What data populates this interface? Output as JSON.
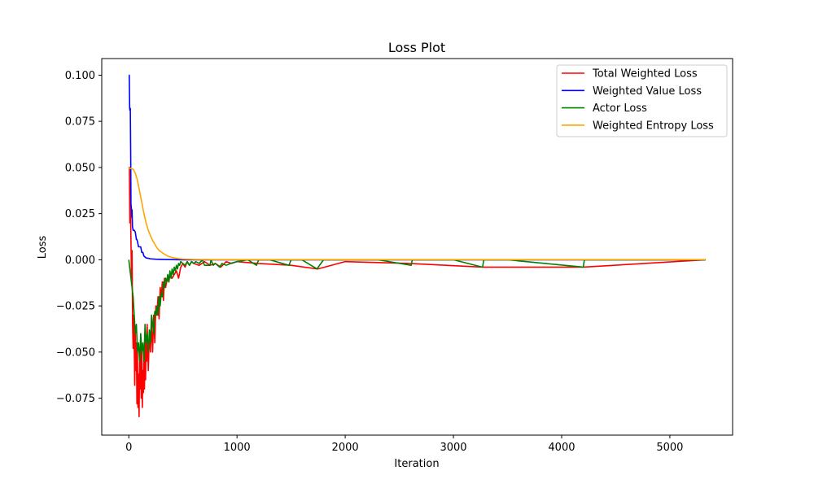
{
  "chart_data": {
    "type": "line",
    "title": "Loss Plot",
    "xlabel": "Iteration",
    "ylabel": "Loss",
    "xlim": [
      -250,
      5580
    ],
    "ylim": [
      -0.095,
      0.109
    ],
    "xticks": [
      0,
      1000,
      2000,
      3000,
      4000,
      5000
    ],
    "xtick_labels": [
      "0",
      "1000",
      "2000",
      "3000",
      "4000",
      "5000"
    ],
    "yticks": [
      -0.075,
      -0.05,
      -0.025,
      0.0,
      0.025,
      0.05,
      0.075,
      0.1
    ],
    "ytick_labels": [
      "−0.075",
      "−0.050",
      "−0.025",
      "0.000",
      "0.025",
      "0.050",
      "0.075",
      "0.100"
    ],
    "grid": false,
    "legend_position": "top-right",
    "series": [
      {
        "name": "Total Weighted Loss",
        "color": "#ff0000",
        "x": [
          0,
          5,
          10,
          15,
          20,
          25,
          30,
          35,
          40,
          45,
          50,
          55,
          60,
          65,
          70,
          75,
          80,
          85,
          90,
          95,
          100,
          105,
          110,
          115,
          120,
          125,
          130,
          135,
          140,
          145,
          150,
          155,
          160,
          165,
          170,
          180,
          190,
          200,
          210,
          220,
          230,
          240,
          250,
          260,
          270,
          280,
          290,
          300,
          310,
          320,
          330,
          340,
          350,
          360,
          370,
          380,
          400,
          420,
          440,
          460,
          480,
          500,
          520,
          540,
          560,
          580,
          600,
          650,
          700,
          750,
          800,
          850,
          900,
          950,
          1000,
          1200,
          1500,
          1745,
          2000,
          2600,
          3270,
          4200,
          5330
        ],
        "y": [
          0.05,
          0.05,
          0.02,
          0.03,
          0.01,
          -0.01,
          0.005,
          -0.035,
          -0.048,
          -0.03,
          -0.045,
          -0.068,
          -0.04,
          -0.06,
          -0.045,
          -0.078,
          -0.05,
          -0.08,
          -0.062,
          -0.085,
          -0.055,
          -0.07,
          -0.045,
          -0.075,
          -0.05,
          -0.08,
          -0.06,
          -0.072,
          -0.048,
          -0.07,
          -0.04,
          -0.065,
          -0.045,
          -0.055,
          -0.035,
          -0.06,
          -0.04,
          -0.05,
          -0.035,
          -0.05,
          -0.03,
          -0.045,
          -0.025,
          -0.03,
          -0.02,
          -0.032,
          -0.015,
          -0.02,
          -0.012,
          -0.022,
          -0.01,
          -0.015,
          -0.012,
          -0.01,
          -0.012,
          -0.008,
          -0.01,
          -0.008,
          -0.006,
          -0.01,
          -0.004,
          -0.002,
          -0.004,
          -0.001,
          -0.003,
          -0.001,
          -0.002,
          -0.003,
          -0.001,
          -0.003,
          -0.002,
          -0.004,
          -0.001,
          -0.002,
          -0.001,
          -0.002,
          -0.003,
          -0.005,
          -0.001,
          -0.002,
          -0.004,
          -0.004,
          0.0
        ]
      },
      {
        "name": "Weighted Value Loss",
        "color": "#0000ff",
        "x": [
          0,
          4,
          8,
          10,
          14,
          18,
          20,
          24,
          28,
          30,
          34,
          40,
          50,
          60,
          70,
          75,
          80,
          90,
          100,
          110,
          120,
          130,
          140,
          160,
          180,
          200,
          250,
          300,
          400,
          500,
          1000,
          2000,
          3000,
          4000,
          5330
        ],
        "y": [
          0.1,
          0.1,
          0.082,
          0.081,
          0.082,
          0.052,
          0.03,
          0.028,
          0.023,
          0.027,
          0.018,
          0.016,
          0.016,
          0.015,
          0.011,
          0.011,
          0.01,
          0.007,
          0.007,
          0.007,
          0.004,
          0.004,
          0.002,
          0.001,
          0.0008,
          0.0005,
          0.0003,
          0.0002,
          0.0001,
          0.0,
          0.0,
          0.0,
          0.0,
          0.0,
          0.0
        ]
      },
      {
        "name": "Actor Loss",
        "color": "#008000",
        "x": [
          0,
          10,
          20,
          30,
          40,
          50,
          60,
          70,
          80,
          90,
          100,
          110,
          120,
          130,
          140,
          150,
          160,
          170,
          180,
          190,
          200,
          210,
          220,
          230,
          240,
          250,
          260,
          270,
          280,
          290,
          300,
          310,
          320,
          330,
          340,
          350,
          360,
          370,
          380,
          390,
          400,
          410,
          420,
          430,
          440,
          450,
          460,
          470,
          480,
          500,
          520,
          540,
          560,
          580,
          600,
          620,
          650,
          680,
          700,
          750,
          760,
          780,
          800,
          820,
          840,
          860,
          900,
          940,
          1000,
          1100,
          1180,
          1200,
          1300,
          1480,
          1500,
          1600,
          1740,
          1750,
          1800,
          2000,
          2300,
          2610,
          2620,
          3000,
          3270,
          3280,
          3500,
          4200,
          4210,
          4500,
          5330
        ],
        "y": [
          0.0,
          -0.005,
          -0.01,
          -0.015,
          -0.02,
          -0.03,
          -0.04,
          -0.035,
          -0.05,
          -0.045,
          -0.055,
          -0.04,
          -0.05,
          -0.045,
          -0.055,
          -0.035,
          -0.045,
          -0.04,
          -0.05,
          -0.038,
          -0.045,
          -0.03,
          -0.035,
          -0.04,
          -0.028,
          -0.03,
          -0.025,
          -0.03,
          -0.02,
          -0.025,
          -0.018,
          -0.02,
          -0.012,
          -0.015,
          -0.01,
          -0.012,
          -0.008,
          -0.012,
          -0.006,
          -0.01,
          -0.005,
          -0.008,
          -0.004,
          -0.006,
          -0.003,
          -0.005,
          -0.002,
          -0.003,
          -0.001,
          -0.002,
          -0.003,
          -0.001,
          -0.003,
          -0.001,
          -0.002,
          -0.001,
          -0.002,
          0.0,
          -0.003,
          -0.003,
          0.0,
          -0.003,
          -0.002,
          -0.003,
          -0.004,
          -0.002,
          -0.003,
          -0.002,
          -0.001,
          0.0,
          -0.003,
          0.0,
          0.0,
          -0.003,
          0.0,
          0.0,
          -0.005,
          -0.004,
          0.0,
          0.0,
          0.0,
          -0.003,
          0.0,
          0.0,
          -0.004,
          0.0,
          0.0,
          -0.004,
          0.0,
          0.0,
          0.0
        ]
      },
      {
        "name": "Weighted Entropy Loss",
        "color": "#ffa500",
        "x": [
          0,
          20,
          40,
          60,
          80,
          100,
          120,
          140,
          160,
          180,
          200,
          220,
          240,
          260,
          280,
          300,
          330,
          360,
          400,
          450,
          500,
          600,
          800,
          1000,
          2000,
          3000,
          4000,
          5330
        ],
        "y": [
          0.0495,
          0.0495,
          0.049,
          0.047,
          0.043,
          0.037,
          0.031,
          0.025,
          0.02,
          0.016,
          0.013,
          0.0105,
          0.0085,
          0.0065,
          0.005,
          0.0042,
          0.003,
          0.002,
          0.0012,
          0.0007,
          0.0004,
          0.0002,
          0.0001,
          0.0001,
          0.0001,
          0.0001,
          0.0001,
          0.0001
        ]
      }
    ]
  }
}
